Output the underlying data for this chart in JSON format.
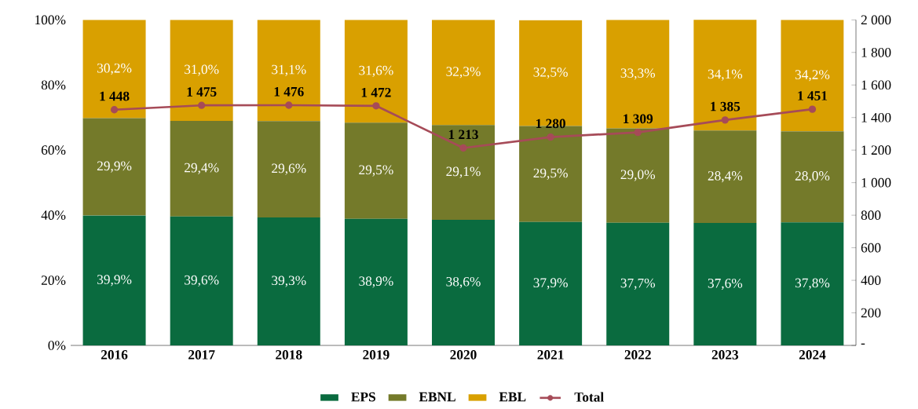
{
  "chart_data": {
    "type": "bar",
    "stacked": true,
    "legend": "bottom",
    "categories": [
      "2016",
      "2017",
      "2018",
      "2019",
      "2020",
      "2021",
      "2022",
      "2023",
      "2024"
    ],
    "ylim": [
      0,
      100
    ],
    "yticks": [
      {
        "value": 0,
        "label": "0%"
      },
      {
        "value": 20,
        "label": "20%"
      },
      {
        "value": 40,
        "label": "40%"
      },
      {
        "value": 60,
        "label": "60%"
      },
      {
        "value": 80,
        "label": "80%"
      },
      {
        "value": 100,
        "label": "100%"
      }
    ],
    "y2lim": [
      0,
      2000
    ],
    "y2ticks": [
      {
        "value": 0,
        "label": "-"
      },
      200,
      400,
      600,
      800,
      {
        "value": 1000,
        "label": "1 000"
      },
      {
        "value": 1200,
        "label": "1 200"
      },
      {
        "value": 1400,
        "label": "1 400"
      },
      {
        "value": 1600,
        "label": "1 600"
      },
      {
        "value": 1800,
        "label": "1 800"
      },
      {
        "value": 2000,
        "label": "2 000"
      }
    ],
    "series": [
      {
        "name": "EPS",
        "color": "#0a6b3f",
        "values": [
          39.9,
          39.6,
          39.3,
          38.9,
          38.6,
          37.9,
          37.7,
          37.6,
          37.8
        ],
        "value_labels": [
          "39,9%",
          "39,6%",
          "39,3%",
          "38,9%",
          "38,6%",
          "37,9%",
          "37,7%",
          "37,6%",
          "37,8%"
        ]
      },
      {
        "name": "EBNL",
        "color": "#747a2a",
        "values": [
          29.9,
          29.4,
          29.6,
          29.5,
          29.1,
          29.5,
          29.0,
          28.4,
          28.0
        ],
        "value_labels": [
          "29,9%",
          "29,4%",
          "29,6%",
          "29,5%",
          "29,1%",
          "29,5%",
          "29,0%",
          "28,4%",
          "28,0%"
        ]
      },
      {
        "name": "EBL",
        "color": "#d9a000",
        "values": [
          30.2,
          31.0,
          31.1,
          31.6,
          32.3,
          32.5,
          33.3,
          34.1,
          34.2
        ],
        "value_labels": [
          "30,2%",
          "31,0%",
          "31,1%",
          "31,6%",
          "32,3%",
          "32,5%",
          "33,3%",
          "34,1%",
          "34,2%"
        ]
      },
      {
        "name": "Total",
        "type": "line",
        "axis": "y2",
        "marker": "circle",
        "line_style": "solid",
        "color": "#a64b58",
        "values": [
          1448,
          1475,
          1476,
          1472,
          1213,
          1280,
          1309,
          1385,
          1451
        ],
        "value_labels": [
          "1 448",
          "1 475",
          "1 476",
          "1 472",
          "1 213",
          "1 280",
          "1 309",
          "1 385",
          "1 451"
        ]
      }
    ]
  }
}
